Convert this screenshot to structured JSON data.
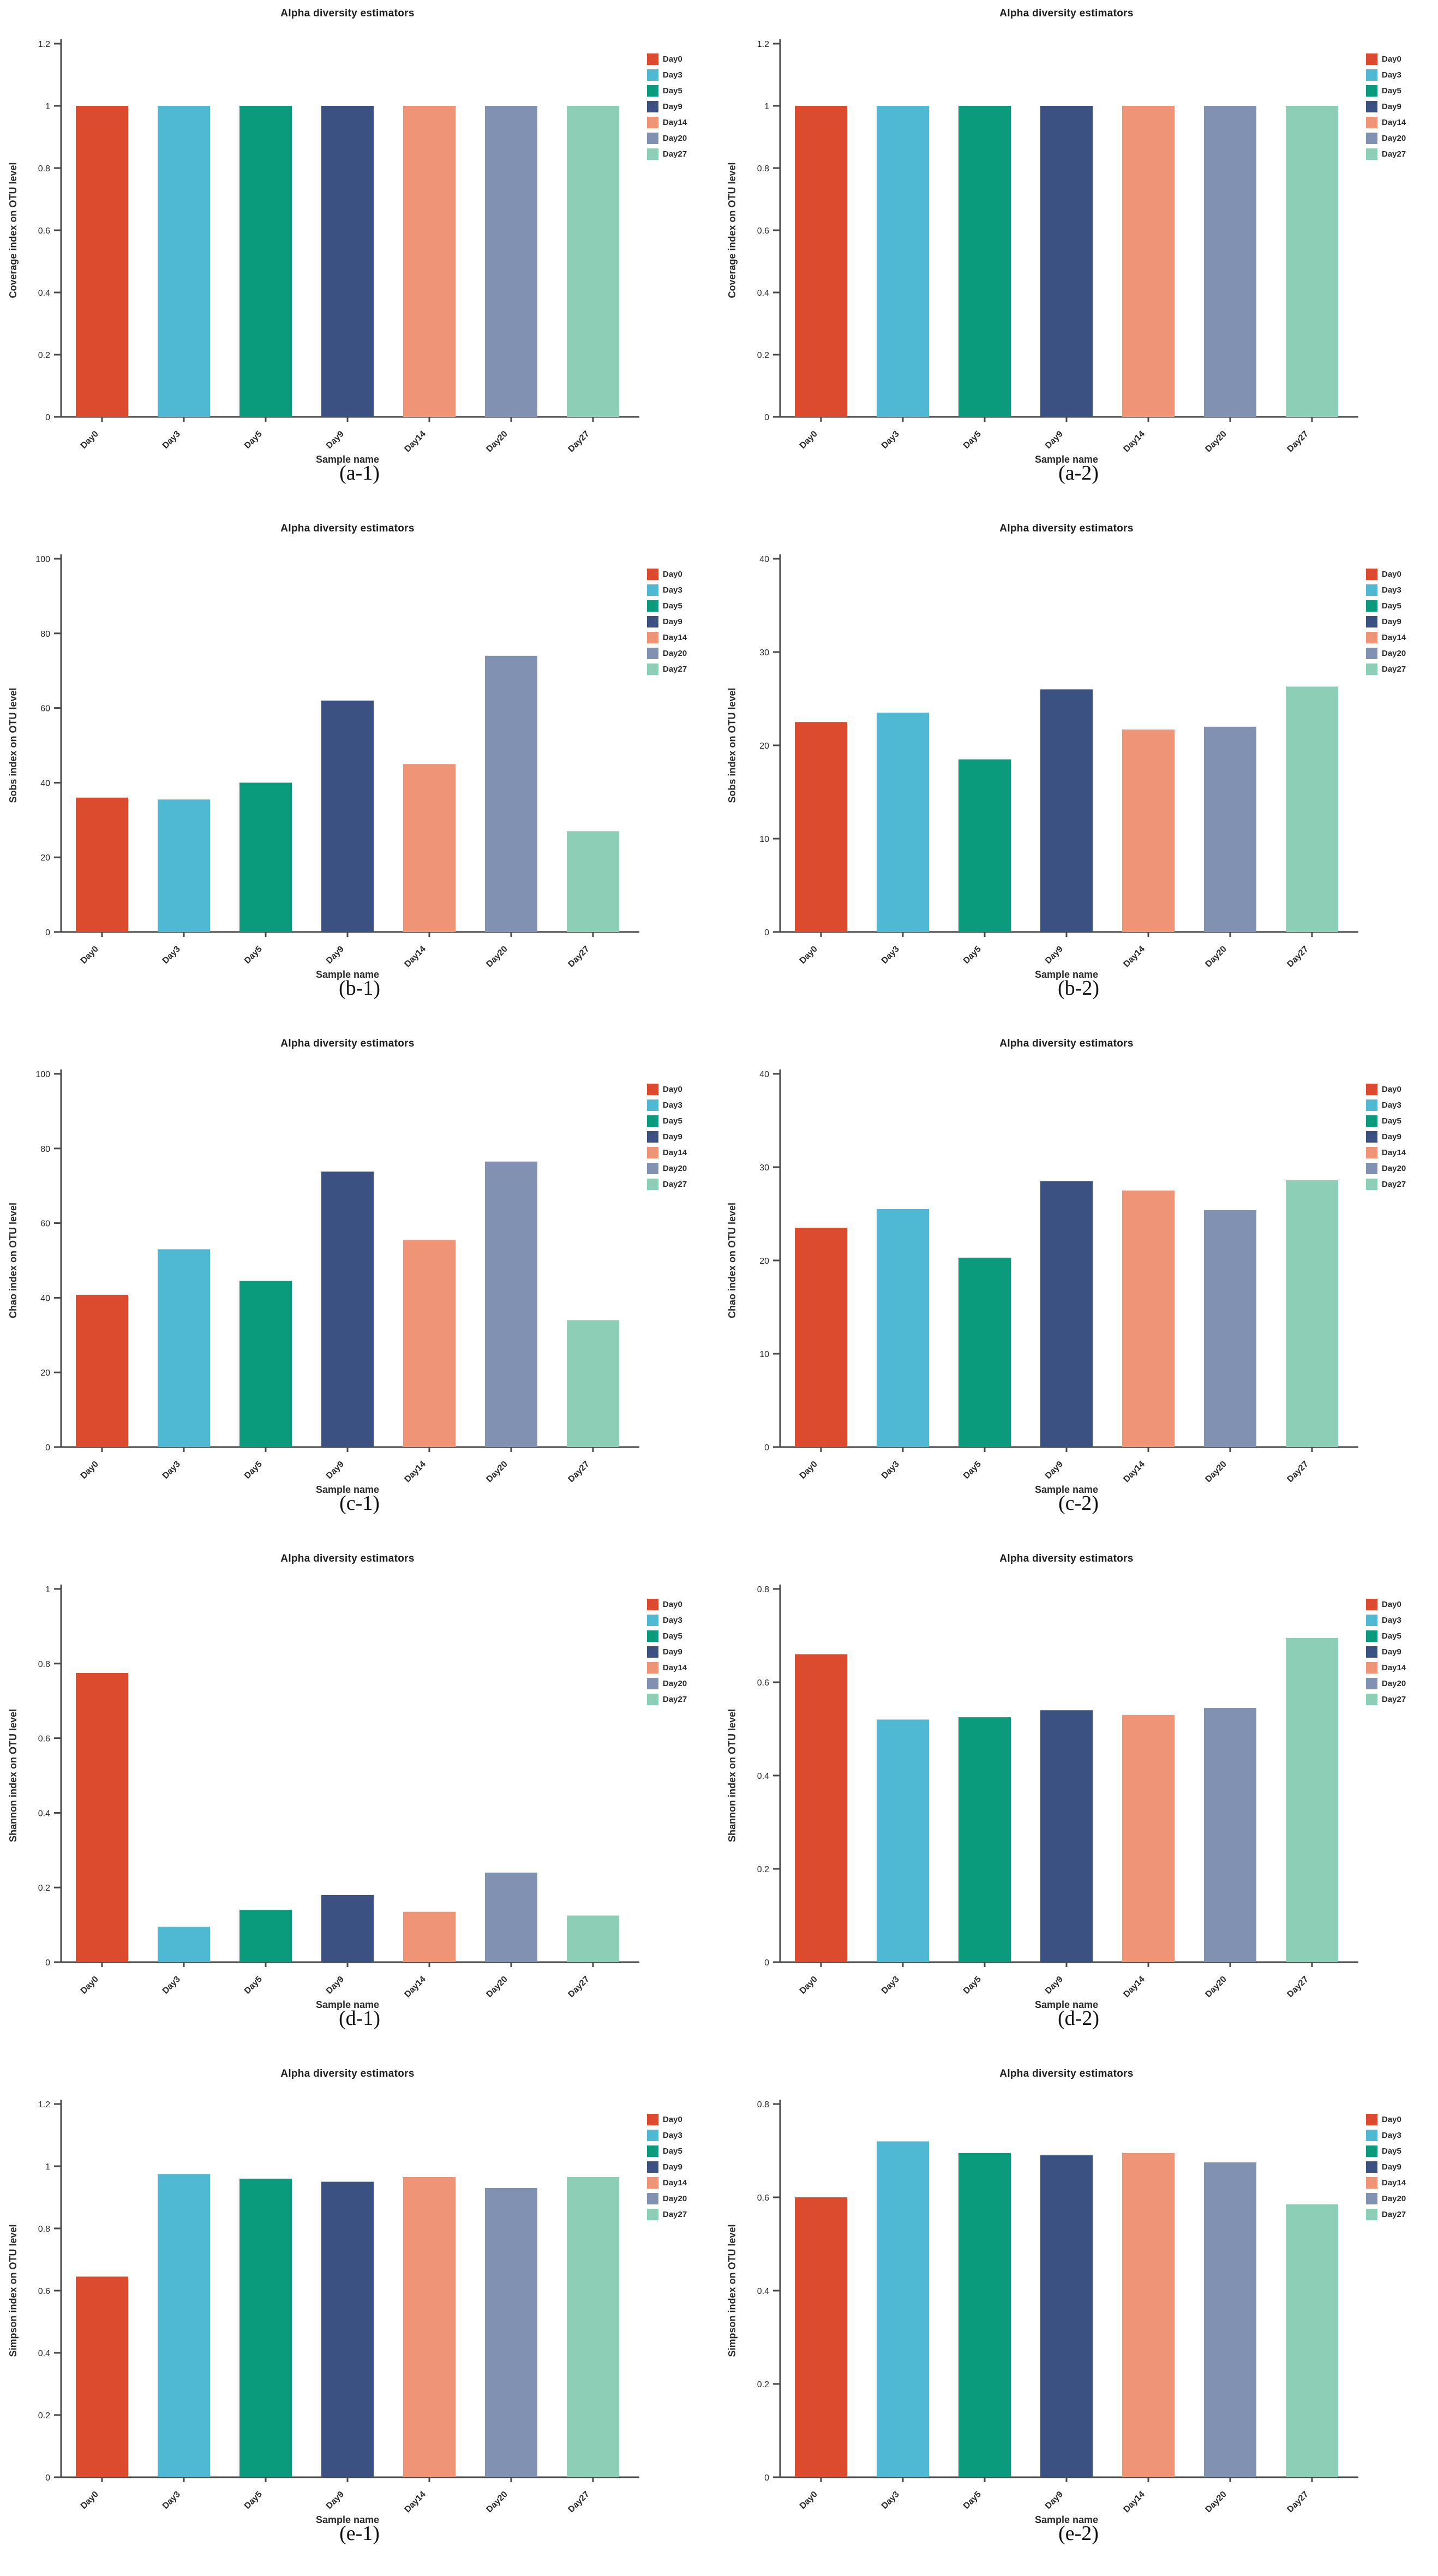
{
  "figure": {
    "background": "#ffffff",
    "text_color": "#2a2a2a",
    "axis_color": "#4a4a4a"
  },
  "legend": {
    "position": "right",
    "labels": [
      "Day0",
      "Day3",
      "Day5",
      "Day9",
      "Day14",
      "Day20",
      "Day27"
    ],
    "colors": [
      "#DD4B2F",
      "#4FB9D4",
      "#0A9B7C",
      "#3A5181",
      "#F09478",
      "#8191B1",
      "#8DCFB6"
    ]
  },
  "chart_data": [
    {
      "id": "a-1",
      "type": "bar",
      "caption": "(a-1)",
      "title": "Alpha diversity estimators",
      "xlabel": "Sample name",
      "ylabel": "Coverage index on OTU level",
      "categories": [
        "Day0",
        "Day3",
        "Day5",
        "Day9",
        "Day14",
        "Day20",
        "Day27"
      ],
      "values": [
        1,
        1,
        1,
        1,
        1,
        1,
        1
      ],
      "ylim": [
        0,
        1.2
      ],
      "yticks": [
        "0",
        "0.2",
        "0.4",
        "0.6",
        "0.8",
        "1",
        "1.2"
      ],
      "grid": false,
      "legend_position": "right"
    },
    {
      "id": "a-2",
      "type": "bar",
      "caption": "(a-2)",
      "title": "Alpha diversity estimators",
      "xlabel": "Sample name",
      "ylabel": "Coverage index on OTU level",
      "categories": [
        "Day0",
        "Day3",
        "Day5",
        "Day9",
        "Day14",
        "Day20",
        "Day27"
      ],
      "values": [
        1,
        1,
        1,
        1,
        1,
        1,
        1
      ],
      "ylim": [
        0,
        1.2
      ],
      "yticks": [
        "0",
        "0.2",
        "0.4",
        "0.6",
        "0.8",
        "1",
        "1.2"
      ],
      "grid": false,
      "legend_position": "right"
    },
    {
      "id": "b-1",
      "type": "bar",
      "caption": "(b-1)",
      "title": "Alpha diversity estimators",
      "xlabel": "Sample name",
      "ylabel": "Sobs index on OTU level",
      "categories": [
        "Day0",
        "Day3",
        "Day5",
        "Day9",
        "Day14",
        "Day20",
        "Day27"
      ],
      "values": [
        36,
        35.5,
        40,
        62,
        45,
        74,
        27
      ],
      "ylim": [
        0,
        100
      ],
      "yticks": [
        "0",
        "20",
        "40",
        "60",
        "80",
        "100"
      ],
      "grid": false,
      "legend_position": "right"
    },
    {
      "id": "b-2",
      "type": "bar",
      "caption": "(b-2)",
      "title": "Alpha diversity estimators",
      "xlabel": "Sample name",
      "ylabel": "Sobs index on OTU level",
      "categories": [
        "Day0",
        "Day3",
        "Day5",
        "Day9",
        "Day14",
        "Day20",
        "Day27"
      ],
      "values": [
        22.5,
        23.5,
        18.5,
        26,
        21.7,
        22,
        26.3
      ],
      "ylim": [
        0,
        40
      ],
      "yticks": [
        "0",
        "10",
        "20",
        "30",
        "40"
      ],
      "grid": false,
      "legend_position": "right"
    },
    {
      "id": "c-1",
      "type": "bar",
      "caption": "(c-1)",
      "title": "Alpha diversity estimators",
      "xlabel": "Sample name",
      "ylabel": "Chao index on OTU level",
      "categories": [
        "Day0",
        "Day3",
        "Day5",
        "Day9",
        "Day14",
        "Day20",
        "Day27"
      ],
      "values": [
        40.8,
        53,
        44.5,
        73.8,
        55.5,
        76.5,
        34
      ],
      "ylim": [
        0,
        100
      ],
      "yticks": [
        "0",
        "20",
        "40",
        "60",
        "80",
        "100"
      ],
      "grid": false,
      "legend_position": "right"
    },
    {
      "id": "c-2",
      "type": "bar",
      "caption": "(c-2)",
      "title": "Alpha diversity estimators",
      "xlabel": "Sample name",
      "ylabel": "Chao index on OTU level",
      "categories": [
        "Day0",
        "Day3",
        "Day5",
        "Day9",
        "Day14",
        "Day20",
        "Day27"
      ],
      "values": [
        23.5,
        25.5,
        20.3,
        28.5,
        27.5,
        25.4,
        28.6
      ],
      "ylim": [
        0,
        40
      ],
      "yticks": [
        "0",
        "10",
        "20",
        "30",
        "40"
      ],
      "grid": false,
      "legend_position": "right"
    },
    {
      "id": "d-1",
      "type": "bar",
      "caption": "(d-1)",
      "title": "Alpha diversity estimators",
      "xlabel": "Sample name",
      "ylabel": "Shannon index on OTU level",
      "categories": [
        "Day0",
        "Day3",
        "Day5",
        "Day9",
        "Day14",
        "Day20",
        "Day27"
      ],
      "values": [
        0.775,
        0.095,
        0.14,
        0.18,
        0.135,
        0.24,
        0.125
      ],
      "ylim": [
        0,
        1
      ],
      "yticks": [
        "0",
        "0.2",
        "0.4",
        "0.6",
        "0.8",
        "1"
      ],
      "grid": false,
      "legend_position": "right"
    },
    {
      "id": "d-2",
      "type": "bar",
      "caption": "(d-2)",
      "title": "Alpha diversity estimators",
      "xlabel": "Sample name",
      "ylabel": "Shannon index on OTU level",
      "categories": [
        "Day0",
        "Day3",
        "Day5",
        "Day9",
        "Day14",
        "Day20",
        "Day27"
      ],
      "values": [
        0.66,
        0.52,
        0.525,
        0.54,
        0.53,
        0.545,
        0.695
      ],
      "ylim": [
        0,
        0.8
      ],
      "yticks": [
        "0",
        "0.2",
        "0.4",
        "0.6",
        "0.8"
      ],
      "grid": false,
      "legend_position": "right"
    },
    {
      "id": "e-1",
      "type": "bar",
      "caption": "(e-1)",
      "title": "Alpha diversity estimators",
      "xlabel": "Sample name",
      "ylabel": "Simpson index on OTU level",
      "categories": [
        "Day0",
        "Day3",
        "Day5",
        "Day9",
        "Day14",
        "Day20",
        "Day27"
      ],
      "values": [
        0.645,
        0.975,
        0.96,
        0.95,
        0.965,
        0.93,
        0.965
      ],
      "ylim": [
        0,
        1.2
      ],
      "yticks": [
        "0",
        "0.2",
        "0.4",
        "0.6",
        "0.8",
        "1",
        "1.2"
      ],
      "grid": false,
      "legend_position": "right"
    },
    {
      "id": "e-2",
      "type": "bar",
      "caption": "(e-2)",
      "title": "Alpha diversity estimators",
      "xlabel": "Sample name",
      "ylabel": "Simpson index on OTU level",
      "categories": [
        "Day0",
        "Day3",
        "Day5",
        "Day9",
        "Day14",
        "Day20",
        "Day27"
      ],
      "values": [
        0.6,
        0.72,
        0.695,
        0.69,
        0.695,
        0.675,
        0.585
      ],
      "ylim": [
        0,
        0.8
      ],
      "yticks": [
        "0",
        "0.2",
        "0.4",
        "0.6",
        "0.8"
      ],
      "grid": false,
      "legend_position": "right"
    }
  ]
}
